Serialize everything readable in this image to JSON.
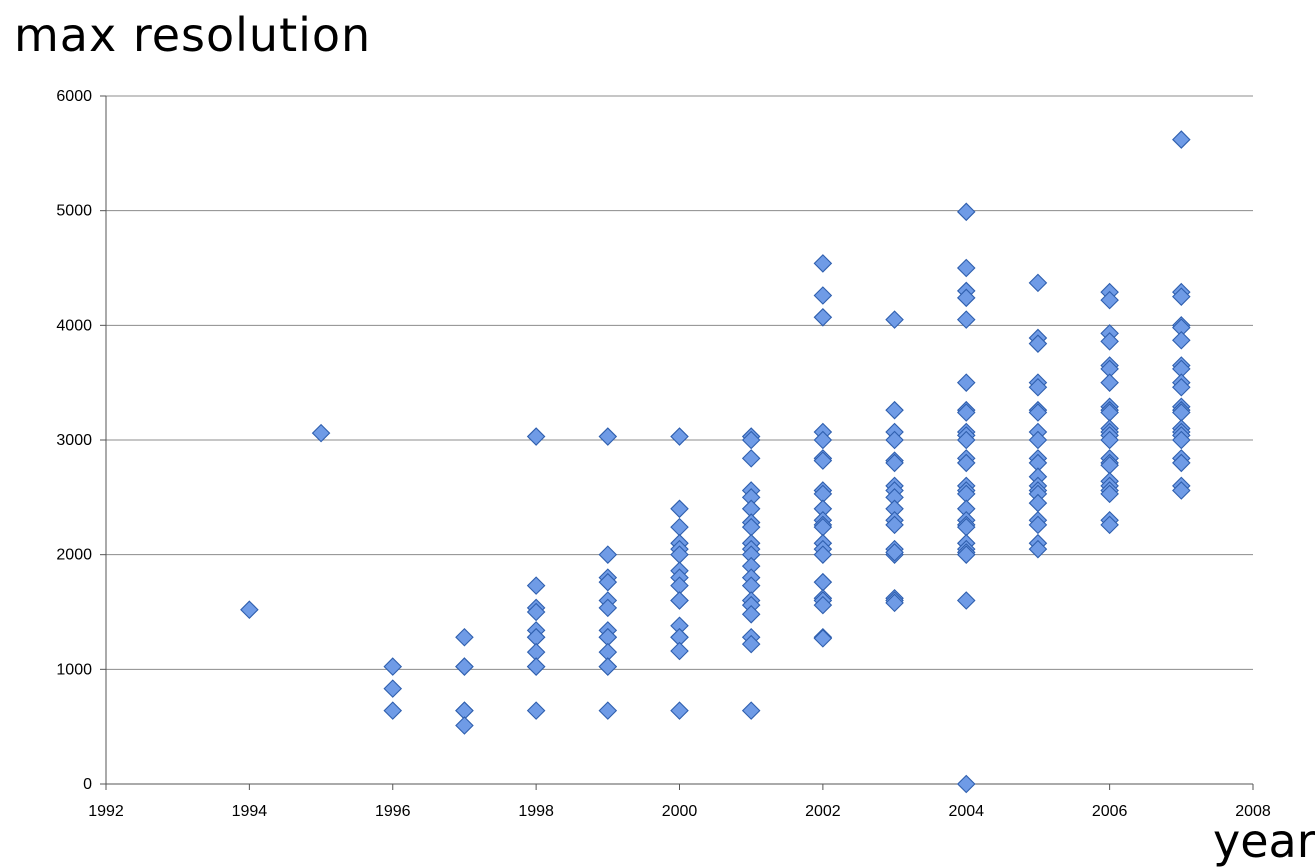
{
  "chart_data": {
    "type": "scatter",
    "title": "max resolution",
    "xlabel": "year",
    "ylabel": "",
    "xlim": [
      1992,
      2008
    ],
    "ylim": [
      0,
      6000
    ],
    "xticks": [
      1992,
      1994,
      1996,
      1998,
      2000,
      2002,
      2004,
      2006,
      2008
    ],
    "yticks": [
      0,
      1000,
      2000,
      3000,
      4000,
      5000,
      6000
    ],
    "grid": "horizontal",
    "marker": "diamond",
    "marker_color": "#6f9be6",
    "marker_edge_color": "#2f5fae",
    "points": [
      {
        "x": 1994,
        "y": 1520
      },
      {
        "x": 1995,
        "y": 3060
      },
      {
        "x": 1996,
        "y": 1024
      },
      {
        "x": 1996,
        "y": 832
      },
      {
        "x": 1996,
        "y": 640
      },
      {
        "x": 1997,
        "y": 1280
      },
      {
        "x": 1997,
        "y": 1024
      },
      {
        "x": 1997,
        "y": 1024
      },
      {
        "x": 1997,
        "y": 640
      },
      {
        "x": 1997,
        "y": 640
      },
      {
        "x": 1997,
        "y": 510
      },
      {
        "x": 1998,
        "y": 3030
      },
      {
        "x": 1998,
        "y": 1730
      },
      {
        "x": 1998,
        "y": 1536
      },
      {
        "x": 1998,
        "y": 1500
      },
      {
        "x": 1998,
        "y": 1340
      },
      {
        "x": 1998,
        "y": 1280
      },
      {
        "x": 1998,
        "y": 1280
      },
      {
        "x": 1998,
        "y": 1150
      },
      {
        "x": 1998,
        "y": 1024
      },
      {
        "x": 1998,
        "y": 1024
      },
      {
        "x": 1998,
        "y": 640
      },
      {
        "x": 1999,
        "y": 3030
      },
      {
        "x": 1999,
        "y": 2000
      },
      {
        "x": 1999,
        "y": 1800
      },
      {
        "x": 1999,
        "y": 1760
      },
      {
        "x": 1999,
        "y": 1600
      },
      {
        "x": 1999,
        "y": 1536
      },
      {
        "x": 1999,
        "y": 1340
      },
      {
        "x": 1999,
        "y": 1280
      },
      {
        "x": 1999,
        "y": 1280
      },
      {
        "x": 1999,
        "y": 1150
      },
      {
        "x": 1999,
        "y": 1024
      },
      {
        "x": 1999,
        "y": 1024
      },
      {
        "x": 1999,
        "y": 640
      },
      {
        "x": 2000,
        "y": 3030
      },
      {
        "x": 2000,
        "y": 2400
      },
      {
        "x": 2000,
        "y": 2240
      },
      {
        "x": 2000,
        "y": 2100
      },
      {
        "x": 2000,
        "y": 2048
      },
      {
        "x": 2000,
        "y": 2000
      },
      {
        "x": 2000,
        "y": 1860
      },
      {
        "x": 2000,
        "y": 1800
      },
      {
        "x": 2000,
        "y": 1730
      },
      {
        "x": 2000,
        "y": 1600
      },
      {
        "x": 2000,
        "y": 1600
      },
      {
        "x": 2000,
        "y": 1380
      },
      {
        "x": 2000,
        "y": 1280
      },
      {
        "x": 2000,
        "y": 1280
      },
      {
        "x": 2000,
        "y": 1160
      },
      {
        "x": 2000,
        "y": 640
      },
      {
        "x": 2001,
        "y": 3030
      },
      {
        "x": 2001,
        "y": 3000
      },
      {
        "x": 2001,
        "y": 2840
      },
      {
        "x": 2001,
        "y": 2560
      },
      {
        "x": 2001,
        "y": 2500
      },
      {
        "x": 2001,
        "y": 2400
      },
      {
        "x": 2001,
        "y": 2280
      },
      {
        "x": 2001,
        "y": 2240
      },
      {
        "x": 2001,
        "y": 2100
      },
      {
        "x": 2001,
        "y": 2048
      },
      {
        "x": 2001,
        "y": 2000
      },
      {
        "x": 2001,
        "y": 1900
      },
      {
        "x": 2001,
        "y": 1800
      },
      {
        "x": 2001,
        "y": 1730
      },
      {
        "x": 2001,
        "y": 1600
      },
      {
        "x": 2001,
        "y": 1560
      },
      {
        "x": 2001,
        "y": 1480
      },
      {
        "x": 2001,
        "y": 1280
      },
      {
        "x": 2001,
        "y": 1220
      },
      {
        "x": 2001,
        "y": 640
      },
      {
        "x": 2002,
        "y": 4540
      },
      {
        "x": 2002,
        "y": 4260
      },
      {
        "x": 2002,
        "y": 4070
      },
      {
        "x": 2002,
        "y": 3070
      },
      {
        "x": 2002,
        "y": 3000
      },
      {
        "x": 2002,
        "y": 2840
      },
      {
        "x": 2002,
        "y": 2820
      },
      {
        "x": 2002,
        "y": 2560
      },
      {
        "x": 2002,
        "y": 2530
      },
      {
        "x": 2002,
        "y": 2400
      },
      {
        "x": 2002,
        "y": 2300
      },
      {
        "x": 2002,
        "y": 2260
      },
      {
        "x": 2002,
        "y": 2240
      },
      {
        "x": 2002,
        "y": 2100
      },
      {
        "x": 2002,
        "y": 2048
      },
      {
        "x": 2002,
        "y": 2000
      },
      {
        "x": 2002,
        "y": 1760
      },
      {
        "x": 2002,
        "y": 1620
      },
      {
        "x": 2002,
        "y": 1600
      },
      {
        "x": 2002,
        "y": 1560
      },
      {
        "x": 2002,
        "y": 1280
      },
      {
        "x": 2002,
        "y": 1270
      },
      {
        "x": 2003,
        "y": 4050
      },
      {
        "x": 2003,
        "y": 3260
      },
      {
        "x": 2003,
        "y": 3070
      },
      {
        "x": 2003,
        "y": 3000
      },
      {
        "x": 2003,
        "y": 2820
      },
      {
        "x": 2003,
        "y": 2800
      },
      {
        "x": 2003,
        "y": 2600
      },
      {
        "x": 2003,
        "y": 2560
      },
      {
        "x": 2003,
        "y": 2500
      },
      {
        "x": 2003,
        "y": 2400
      },
      {
        "x": 2003,
        "y": 2300
      },
      {
        "x": 2003,
        "y": 2260
      },
      {
        "x": 2003,
        "y": 2048
      },
      {
        "x": 2003,
        "y": 2000
      },
      {
        "x": 2003,
        "y": 2020
      },
      {
        "x": 2003,
        "y": 1620
      },
      {
        "x": 2003,
        "y": 1600
      },
      {
        "x": 2003,
        "y": 1580
      },
      {
        "x": 2004,
        "y": 4990
      },
      {
        "x": 2004,
        "y": 4500
      },
      {
        "x": 2004,
        "y": 4300
      },
      {
        "x": 2004,
        "y": 4240
      },
      {
        "x": 2004,
        "y": 4050
      },
      {
        "x": 2004,
        "y": 3500
      },
      {
        "x": 2004,
        "y": 3260
      },
      {
        "x": 2004,
        "y": 3240
      },
      {
        "x": 2004,
        "y": 3070
      },
      {
        "x": 2004,
        "y": 3040
      },
      {
        "x": 2004,
        "y": 3000
      },
      {
        "x": 2004,
        "y": 2840
      },
      {
        "x": 2004,
        "y": 2800
      },
      {
        "x": 2004,
        "y": 2600
      },
      {
        "x": 2004,
        "y": 2560
      },
      {
        "x": 2004,
        "y": 2530
      },
      {
        "x": 2004,
        "y": 2400
      },
      {
        "x": 2004,
        "y": 2300
      },
      {
        "x": 2004,
        "y": 2260
      },
      {
        "x": 2004,
        "y": 2240
      },
      {
        "x": 2004,
        "y": 2100
      },
      {
        "x": 2004,
        "y": 2048
      },
      {
        "x": 2004,
        "y": 2020
      },
      {
        "x": 2004,
        "y": 2000
      },
      {
        "x": 2004,
        "y": 1600
      },
      {
        "x": 2004,
        "y": 0
      },
      {
        "x": 2005,
        "y": 4370
      },
      {
        "x": 2005,
        "y": 3890
      },
      {
        "x": 2005,
        "y": 3840
      },
      {
        "x": 2005,
        "y": 3500
      },
      {
        "x": 2005,
        "y": 3460
      },
      {
        "x": 2005,
        "y": 3260
      },
      {
        "x": 2005,
        "y": 3240
      },
      {
        "x": 2005,
        "y": 3070
      },
      {
        "x": 2005,
        "y": 3000
      },
      {
        "x": 2005,
        "y": 2840
      },
      {
        "x": 2005,
        "y": 2800
      },
      {
        "x": 2005,
        "y": 2680
      },
      {
        "x": 2005,
        "y": 2600
      },
      {
        "x": 2005,
        "y": 2560
      },
      {
        "x": 2005,
        "y": 2530
      },
      {
        "x": 2005,
        "y": 2450
      },
      {
        "x": 2005,
        "y": 2300
      },
      {
        "x": 2005,
        "y": 2260
      },
      {
        "x": 2005,
        "y": 2100
      },
      {
        "x": 2005,
        "y": 2048
      },
      {
        "x": 2006,
        "y": 4290
      },
      {
        "x": 2006,
        "y": 4220
      },
      {
        "x": 2006,
        "y": 3930
      },
      {
        "x": 2006,
        "y": 3860
      },
      {
        "x": 2006,
        "y": 3650
      },
      {
        "x": 2006,
        "y": 3620
      },
      {
        "x": 2006,
        "y": 3500
      },
      {
        "x": 2006,
        "y": 3290
      },
      {
        "x": 2006,
        "y": 3260
      },
      {
        "x": 2006,
        "y": 3240
      },
      {
        "x": 2006,
        "y": 3100
      },
      {
        "x": 2006,
        "y": 3070
      },
      {
        "x": 2006,
        "y": 3040
      },
      {
        "x": 2006,
        "y": 3000
      },
      {
        "x": 2006,
        "y": 2840
      },
      {
        "x": 2006,
        "y": 2800
      },
      {
        "x": 2006,
        "y": 2780
      },
      {
        "x": 2006,
        "y": 2640
      },
      {
        "x": 2006,
        "y": 2600
      },
      {
        "x": 2006,
        "y": 2560
      },
      {
        "x": 2006,
        "y": 2530
      },
      {
        "x": 2006,
        "y": 2300
      },
      {
        "x": 2006,
        "y": 2260
      },
      {
        "x": 2007,
        "y": 5620
      },
      {
        "x": 2007,
        "y": 4290
      },
      {
        "x": 2007,
        "y": 4250
      },
      {
        "x": 2007,
        "y": 4000
      },
      {
        "x": 2007,
        "y": 3980
      },
      {
        "x": 2007,
        "y": 3870
      },
      {
        "x": 2007,
        "y": 3650
      },
      {
        "x": 2007,
        "y": 3620
      },
      {
        "x": 2007,
        "y": 3500
      },
      {
        "x": 2007,
        "y": 3460
      },
      {
        "x": 2007,
        "y": 3290
      },
      {
        "x": 2007,
        "y": 3260
      },
      {
        "x": 2007,
        "y": 3240
      },
      {
        "x": 2007,
        "y": 3100
      },
      {
        "x": 2007,
        "y": 3070
      },
      {
        "x": 2007,
        "y": 3040
      },
      {
        "x": 2007,
        "y": 3000
      },
      {
        "x": 2007,
        "y": 2840
      },
      {
        "x": 2007,
        "y": 2800
      },
      {
        "x": 2007,
        "y": 2600
      },
      {
        "x": 2007,
        "y": 2560
      }
    ]
  }
}
